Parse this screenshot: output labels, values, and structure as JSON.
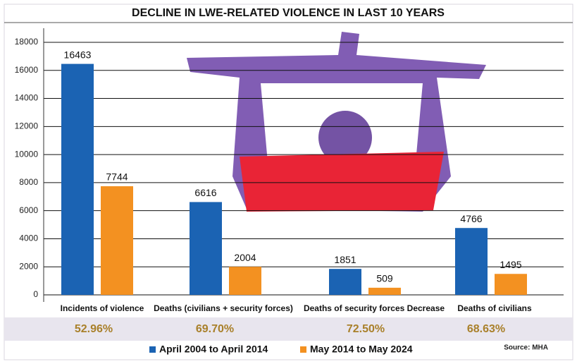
{
  "chart_data": {
    "type": "bar",
    "title": "DECLINE IN LWE-RELATED VIOLENCE IN LAST 10 YEARS",
    "categories": [
      "Incidents of violence",
      "Deaths (civilians + security forces)",
      "Deaths of security forces Decrease",
      "Deaths of civilians"
    ],
    "series": [
      {
        "name": "April 2004 to April 2014",
        "color": "#1b63b3",
        "values": [
          16463,
          6616,
          1851,
          4766
        ]
      },
      {
        "name": "May 2014 to May 2024",
        "color": "#f39121",
        "values": [
          7744,
          2004,
          509,
          1495
        ]
      }
    ],
    "decline_percent": {
      "values": [
        52.96,
        69.7,
        72.5,
        68.63
      ],
      "value_labels": [
        "52.96%",
        "69.70%",
        "72.50%",
        "68.63%"
      ],
      "color": "#a9802a"
    },
    "ylim": [
      0,
      18000
    ],
    "yticks": [
      0,
      2000,
      4000,
      6000,
      8000,
      10000,
      12000,
      14000,
      16000,
      18000
    ],
    "grid": true,
    "legend": "bottom",
    "source": "Source: MHA"
  }
}
